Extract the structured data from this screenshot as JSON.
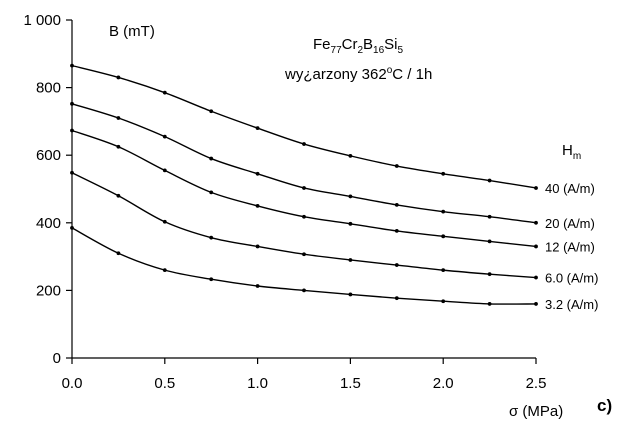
{
  "chart_data": {
    "type": "line",
    "ylabel": "B (mT)",
    "xlabel": "σ (MPa)",
    "xlim": [
      0,
      2.5
    ],
    "ylim": [
      0,
      1000
    ],
    "x_ticks": [
      0.0,
      0.5,
      1.0,
      1.5,
      2.0,
      2.5
    ],
    "x_tick_labels": [
      "0.0",
      "0.5",
      "1.0",
      "1.5",
      "2.0",
      "2.5"
    ],
    "y_ticks": [
      0,
      200,
      400,
      600,
      800,
      1000
    ],
    "y_tick_labels": [
      "0",
      "200",
      "400",
      "600",
      "800",
      "1 000"
    ],
    "grid": false,
    "legend_title": {
      "main": "H",
      "sub": "m"
    },
    "panel_label": "c)",
    "title_block": {
      "alloy": {
        "el1": "Fe",
        "n1": "77",
        "el2": "Cr",
        "n2": "2",
        "el3": "B",
        "n3": "16",
        "el4": "Si",
        "n4": "5"
      },
      "anneal": {
        "prefix": "wy¿arzony 362",
        "deg": "o",
        "suffix": "C / 1h"
      }
    },
    "x": [
      0.0,
      0.25,
      0.5,
      0.75,
      1.0,
      1.25,
      1.5,
      1.75,
      2.0,
      2.25,
      2.5
    ],
    "series": [
      {
        "name": "40 (A/m)",
        "values": [
          865,
          830,
          785,
          730,
          680,
          633,
          598,
          568,
          545,
          525,
          503
        ]
      },
      {
        "name": "20 (A/m)",
        "values": [
          752,
          710,
          655,
          590,
          545,
          503,
          478,
          453,
          433,
          418,
          400
        ]
      },
      {
        "name": "12 (A/m)",
        "values": [
          673,
          625,
          555,
          490,
          450,
          418,
          397,
          376,
          360,
          345,
          330
        ]
      },
      {
        "name": "6.0 (A/m)",
        "values": [
          548,
          480,
          403,
          356,
          330,
          307,
          290,
          275,
          260,
          248,
          238
        ]
      },
      {
        "name": "3.2 (A/m)",
        "values": [
          385,
          310,
          260,
          233,
          213,
          200,
          188,
          177,
          168,
          160,
          160
        ]
      }
    ]
  }
}
